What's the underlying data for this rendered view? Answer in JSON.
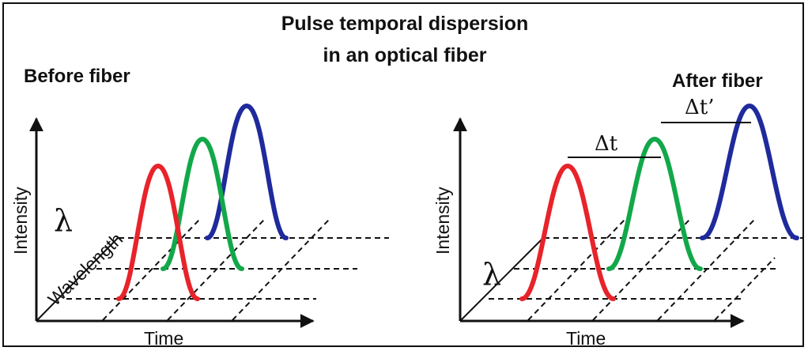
{
  "title": {
    "line1": "Pulse temporal dispersion",
    "line2": "in an optical fiber"
  },
  "panels": {
    "before": {
      "heading": "Before fiber",
      "y_axis_label": "Intensity",
      "x_axis_label": "Time",
      "depth_axis_label": "Wavelength",
      "depth_symbol": "λ"
    },
    "after": {
      "heading": "After fiber",
      "y_axis_label": "Intensity",
      "x_axis_label": "Time",
      "depth_symbol": "λ",
      "delay_label_1": "Δt",
      "delay_label_2": "Δt’"
    }
  },
  "colors": {
    "pulse_red": "#e8232a",
    "pulse_green": "#12a84a",
    "pulse_blue": "#1f2a9c",
    "axis": "#111111"
  },
  "icons": {
    "axis_arrowheads": "arrowhead"
  }
}
